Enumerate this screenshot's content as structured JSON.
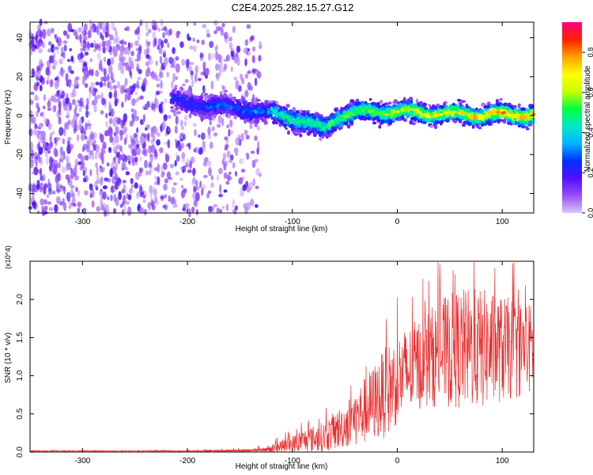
{
  "figure_title": "C2E4.2025.282.15.27.G12",
  "chart_data": [
    {
      "type": "heatmap",
      "title": "C2E4.2025.282.15.27.G12",
      "xlabel": "Height of straight line (km)",
      "ylabel": "Frequency (Hz)",
      "xlim": [
        -350,
        130
      ],
      "ylim": [
        -50,
        48
      ],
      "xticks": [
        -300,
        -200,
        -100,
        0,
        100
      ],
      "xtick_labels": [
        "-300",
        "-200",
        "-100",
        "0",
        "100"
      ],
      "yticks": [
        -40,
        -20,
        0,
        20,
        40
      ],
      "ytick_labels": [
        "-40",
        "-20",
        "0",
        "20",
        "40"
      ],
      "colorbar": {
        "label": "Normalized spectral amplitude",
        "range": [
          0,
          0.95
        ],
        "ticks": [
          0.0,
          0.2,
          0.4,
          0.6,
          0.8
        ],
        "tick_labels": [
          "0.0",
          "0.2",
          "0.4",
          "0.6",
          "0.8"
        ],
        "colormap": [
          "#d8c8f8",
          "#9a4df8",
          "#5010ff",
          "#0030ff",
          "#00b4ff",
          "#00e8c8",
          "#00ff40",
          "#c8ff00",
          "#ffff00",
          "#ffa000",
          "#ff2000",
          "#ff0080"
        ]
      },
      "ridge": {
        "x": [
          -215,
          -200,
          -180,
          -160,
          -140,
          -120,
          -100,
          -85,
          -70,
          -62,
          -55,
          -45,
          -30,
          -10,
          10,
          30,
          50,
          70,
          90,
          110,
          130
        ],
        "frequency": [
          8,
          6,
          5,
          4,
          3,
          1,
          -1,
          -4,
          -7,
          -3,
          0,
          1,
          2,
          2,
          2,
          1,
          1,
          0,
          1,
          0,
          1
        ]
      },
      "noise_region_x": [
        -350,
        -140
      ]
    },
    {
      "type": "line",
      "title": "",
      "xlabel": "Height of straight line (km)",
      "ylabel": "SNR (10 * v/v)",
      "scale_label": "(x10^4)",
      "xlim": [
        -350,
        130
      ],
      "ylim": [
        0,
        2.5
      ],
      "xticks": [
        -300,
        -200,
        -100,
        0,
        100
      ],
      "xtick_labels": [
        "-300",
        "-200",
        "-100",
        "0",
        "100"
      ],
      "yticks": [
        0.0,
        0.5,
        1.0,
        1.5,
        2.0
      ],
      "ytick_labels": [
        "0.0",
        "0.5",
        "1.0",
        "1.5",
        "2.0"
      ],
      "series_color": "#e83030",
      "envelope": {
        "x": [
          -350,
          -200,
          -140,
          -120,
          -100,
          -90,
          -70,
          -50,
          -30,
          -10,
          0,
          20,
          40,
          60,
          80,
          100,
          130
        ],
        "mean": [
          0.01,
          0.01,
          0.02,
          0.05,
          0.1,
          0.15,
          0.2,
          0.35,
          0.55,
          0.8,
          0.95,
          1.15,
          1.3,
          1.35,
          1.35,
          1.35,
          1.35
        ],
        "spread": [
          0.01,
          0.01,
          0.02,
          0.06,
          0.12,
          0.15,
          0.2,
          0.3,
          0.45,
          0.6,
          0.6,
          0.6,
          0.7,
          0.8,
          0.8,
          0.7,
          0.6
        ]
      }
    }
  ]
}
